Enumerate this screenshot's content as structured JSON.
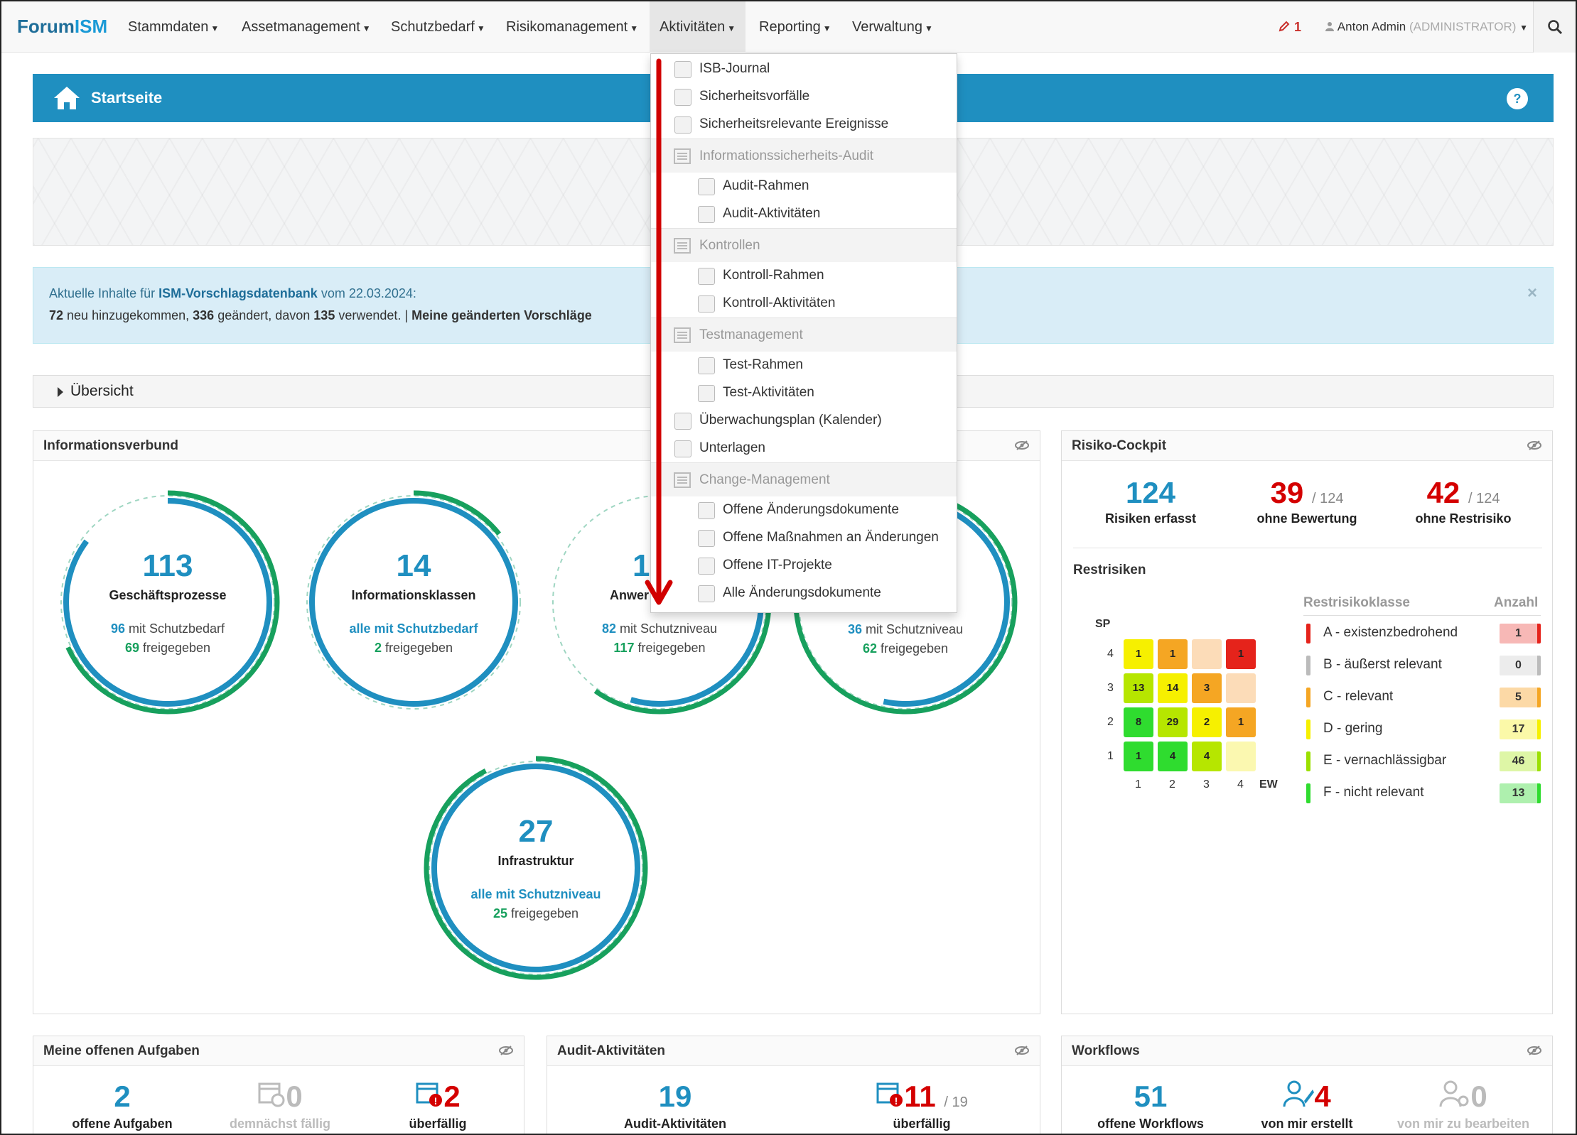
{
  "brand": {
    "prefix": "Forum",
    "suffix": "ISM"
  },
  "nav": {
    "items": [
      "Stammdaten",
      "Assetmanagement",
      "Schutzbedarf",
      "Risikomanagement",
      "Aktivitäten",
      "Reporting",
      "Verwaltung"
    ],
    "notifications": "1",
    "user_name": "Anton Admin",
    "user_role": "(ADMINISTRATOR)"
  },
  "page": {
    "title": "Startseite",
    "help": "?"
  },
  "alert": {
    "prefix": "Aktuelle Inhalte für ",
    "db": "ISM-Vorschlagsdatenbank",
    "date_text": " vom 22.03.2024:",
    "new_count": "72",
    "new_text": " neu hinzugekommen, ",
    "changed_count": "336",
    "changed_text": " geändert, davon ",
    "used_count": "135",
    "used_text": " verwendet. | ",
    "link": "Meine geänderten Vorschläge",
    "close": "×"
  },
  "overview": {
    "label": "Übersicht"
  },
  "infoverbund": {
    "title": "Informationsverbund",
    "circles": [
      {
        "num": "113",
        "name": "Geschäftsprozesse",
        "l1a": "96",
        "l1b": " mit Schutzbedarf",
        "l2a": "69",
        "l2b": " freigegeben"
      },
      {
        "num": "14",
        "name": "Informationsklassen",
        "l1a": "alle mit Schutzbedarf",
        "l1b": "",
        "l2a": "2",
        "l2b": " freigegeben"
      },
      {
        "num": "1",
        "name": "Anwer",
        "l1a": "82",
        "l1b": " mit Schutzniveau",
        "l2a": "117",
        "l2b": " freigegeben"
      },
      {
        "num": "",
        "name": "",
        "l1a": "36",
        "l1b": " mit Schutzniveau",
        "l2a": "62",
        "l2b": " freigegeben"
      },
      {
        "num": "27",
        "name": "Infrastruktur",
        "l1a": "alle mit Schutzniveau",
        "l1b": "",
        "l2a": "25",
        "l2b": " freigegeben"
      }
    ]
  },
  "dropdown": {
    "items": [
      {
        "label": "ISB-Journal",
        "type": "item"
      },
      {
        "label": "Sicherheitsvorfälle",
        "type": "item"
      },
      {
        "label": "Sicherheitsrelevante Ereignisse",
        "type": "item"
      },
      {
        "label": "Informationssicherheits-Audit",
        "type": "head"
      },
      {
        "label": "Audit-Rahmen",
        "type": "sub"
      },
      {
        "label": "Audit-Aktivitäten",
        "type": "sub"
      },
      {
        "label": "Kontrollen",
        "type": "head"
      },
      {
        "label": "Kontroll-Rahmen",
        "type": "sub"
      },
      {
        "label": "Kontroll-Aktivitäten",
        "type": "sub"
      },
      {
        "label": "Testmanagement",
        "type": "head"
      },
      {
        "label": "Test-Rahmen",
        "type": "sub"
      },
      {
        "label": "Test-Aktivitäten",
        "type": "sub"
      },
      {
        "label": "Überwachungsplan (Kalender)",
        "type": "item"
      },
      {
        "label": "Unterlagen",
        "type": "item"
      },
      {
        "label": "Change-Management",
        "type": "head"
      },
      {
        "label": "Offene Änderungsdokumente",
        "type": "sub"
      },
      {
        "label": "Offene Maßnahmen an Änderungen",
        "type": "sub"
      },
      {
        "label": "Offene IT-Projekte",
        "type": "sub"
      },
      {
        "label": "Alle Änderungsdokumente",
        "type": "sub"
      }
    ]
  },
  "risk": {
    "title": "Risiko-Cockpit",
    "stats": [
      {
        "n": "124",
        "of": "",
        "label": "Risiken erfasst",
        "color": "#1f8fc0"
      },
      {
        "n": "39",
        "of": "/ 124",
        "label": "ohne Bewertung",
        "color": "#d40000"
      },
      {
        "n": "42",
        "of": "/ 124",
        "label": "ohne Restrisiko",
        "color": "#d40000"
      }
    ],
    "restrisiken": "Restrisiken",
    "sp": "SP",
    "ew": "EW",
    "y_ticks": [
      "4",
      "3",
      "2",
      "1"
    ],
    "x_ticks": [
      "1",
      "2",
      "3",
      "4"
    ],
    "matrix": [
      [
        {
          "v": "1",
          "c": "#f6f000"
        },
        {
          "v": "1",
          "c": "#f5a623"
        },
        {
          "v": "",
          "c": "#fcdcb8"
        },
        {
          "v": "1",
          "c": "#e5231b"
        }
      ],
      [
        {
          "v": "13",
          "c": "#b6e600"
        },
        {
          "v": "14",
          "c": "#f6f000"
        },
        {
          "v": "3",
          "c": "#f5a623"
        },
        {
          "v": "",
          "c": "#fcdcb8"
        }
      ],
      [
        {
          "v": "8",
          "c": "#2fdc2f"
        },
        {
          "v": "29",
          "c": "#b6e600"
        },
        {
          "v": "2",
          "c": "#f6f000"
        },
        {
          "v": "1",
          "c": "#f5a623"
        }
      ],
      [
        {
          "v": "1",
          "c": "#2fdc2f"
        },
        {
          "v": "4",
          "c": "#2fdc2f"
        },
        {
          "v": "4",
          "c": "#b6e600"
        },
        {
          "v": "",
          "c": "#fbf8b0"
        }
      ]
    ],
    "legend_head": "Restrisikoklasse",
    "count_head": "Anzahl",
    "classes": [
      {
        "label": "A - existenzbedrohend",
        "count": "1",
        "color": "#e5231b",
        "bg": "#f7b8b6"
      },
      {
        "label": "B - äußerst relevant",
        "count": "0",
        "color": "#bbbbbb",
        "bg": "#ececec"
      },
      {
        "label": "C - relevant",
        "count": "5",
        "color": "#f5a623",
        "bg": "#fcd9a6"
      },
      {
        "label": "D - gering",
        "count": "17",
        "color": "#f6f000",
        "bg": "#fbf9a8"
      },
      {
        "label": "E - vernachlässigbar",
        "count": "46",
        "color": "#9be000",
        "bg": "#def6a6"
      },
      {
        "label": "F - nicht relevant",
        "count": "13",
        "color": "#2fdc2f",
        "bg": "#aef0ae"
      }
    ]
  },
  "tasks": {
    "title": "Meine offenen Aufgaben",
    "open": "2",
    "open_lbl": "offene Aufgaben",
    "soon": "0",
    "soon_lbl": "demnächst fällig",
    "over": "2",
    "over_lbl": "überfällig"
  },
  "audit": {
    "title": "Audit-Aktivitäten",
    "n": "19",
    "n_lbl": "Audit-Aktivitäten",
    "over": "11",
    "over_of": "/ 19",
    "over_lbl": "überfällig"
  },
  "workflows": {
    "title": "Workflows",
    "n": "51",
    "n_lbl": "offene Workflows",
    "mine": "4",
    "mine_lbl": "von mir erstellt",
    "todo": "0",
    "todo_lbl": "von mir zu bearbeiten"
  }
}
